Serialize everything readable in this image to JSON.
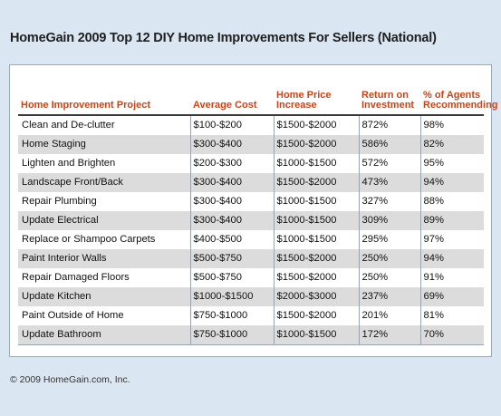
{
  "title": "HomeGain 2009 Top 12 DIY Home Improvements For Sellers (National)",
  "copyright": "© 2009 HomeGain.com, Inc.",
  "chart_data": {
    "type": "table",
    "columns": [
      {
        "line1": "Home Improvement Project",
        "line2": ""
      },
      {
        "line1": "Average Cost",
        "line2": ""
      },
      {
        "line1": "Home Price",
        "line2": "Increase"
      },
      {
        "line1": "Return on",
        "line2": "Investment"
      },
      {
        "line1": "% of Agents",
        "line2": "Recommending"
      }
    ],
    "rows": [
      [
        "Clean and De-clutter",
        "$100-$200",
        "$1500-$2000",
        "872%",
        "98%"
      ],
      [
        "Home Staging",
        "$300-$400",
        "$1500-$2000",
        "586%",
        "82%"
      ],
      [
        "Lighten and Brighten",
        "$200-$300",
        "$1000-$1500",
        "572%",
        "95%"
      ],
      [
        "Landscape Front/Back",
        "$300-$400",
        "$1500-$2000",
        "473%",
        "94%"
      ],
      [
        "Repair Plumbing",
        "$300-$400",
        "$1000-$1500",
        "327%",
        "88%"
      ],
      [
        "Update Electrical",
        "$300-$400",
        "$1000-$1500",
        "309%",
        "89%"
      ],
      [
        "Replace or Shampoo Carpets",
        "$400-$500",
        "$1000-$1500",
        "295%",
        "97%"
      ],
      [
        "Paint Interior Walls",
        "$500-$750",
        "$1500-$2000",
        "250%",
        "94%"
      ],
      [
        "Repair Damaged Floors",
        "$500-$750",
        "$1500-$2000",
        "250%",
        "91%"
      ],
      [
        "Update Kitchen",
        "$1000-$1500",
        "$2000-$3000",
        "237%",
        "69%"
      ],
      [
        "Paint Outside of Home",
        "$750-$1000",
        "$1500-$2000",
        "201%",
        "81%"
      ],
      [
        "Update Bathroom",
        "$750-$1000",
        "$1000-$1500",
        "172%",
        "70%"
      ]
    ]
  }
}
